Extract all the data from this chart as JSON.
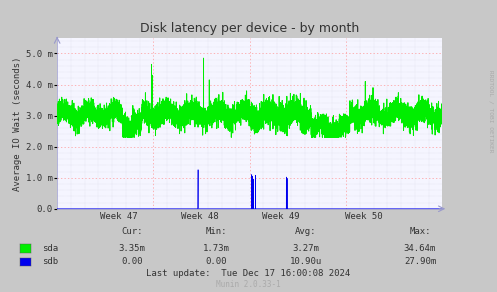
{
  "title": "Disk latency per device - by month",
  "ylabel": "Average IO Wait (seconds)",
  "fig_bg_color": "#C8C8C8",
  "plot_bg_color": "#F5F5FF",
  "grid_h_color": "#FF9999",
  "grid_v_color": "#CCCCDD",
  "sda_color": "#00EE00",
  "sdb_color": "#0000EE",
  "axis_arrow_color": "#9999CC",
  "baseline_color": "#9999DD",
  "tick_color": "#333333",
  "title_color": "#333333",
  "rrdtool_color": "#AAAAAA",
  "munin_color": "#AAAAAA",
  "footer_color": "#333333",
  "legend_text_color": "#333333",
  "ytick_labels": [
    "0.0",
    "1.0 m",
    "2.0 m",
    "3.0 m",
    "4.0 m",
    "5.0 m"
  ],
  "ytick_vals": [
    0.0,
    0.001,
    0.002,
    0.003,
    0.004,
    0.005
  ],
  "ylim_max": 0.0055,
  "week_labels": [
    "Week 47",
    "Week 48",
    "Week 49",
    "Week 50"
  ],
  "rrdtool_text": "RRDTOOL / TOBI OETIKER",
  "cur_label": "Cur:",
  "min_label": "Min:",
  "avg_label": "Avg:",
  "max_label": "Max:",
  "sda_label": "sda",
  "sdb_label": "sdb",
  "sda_cur": "3.35m",
  "sda_min": "1.73m",
  "sda_avg": "3.27m",
  "sda_max": "34.64m",
  "sdb_cur": "0.00",
  "sdb_min": "0.00",
  "sdb_avg": "10.90u",
  "sdb_max": "27.90m",
  "footer_text": "Last update:  Tue Dec 17 16:00:08 2024",
  "munin_text": "Munin 2.0.33-1"
}
